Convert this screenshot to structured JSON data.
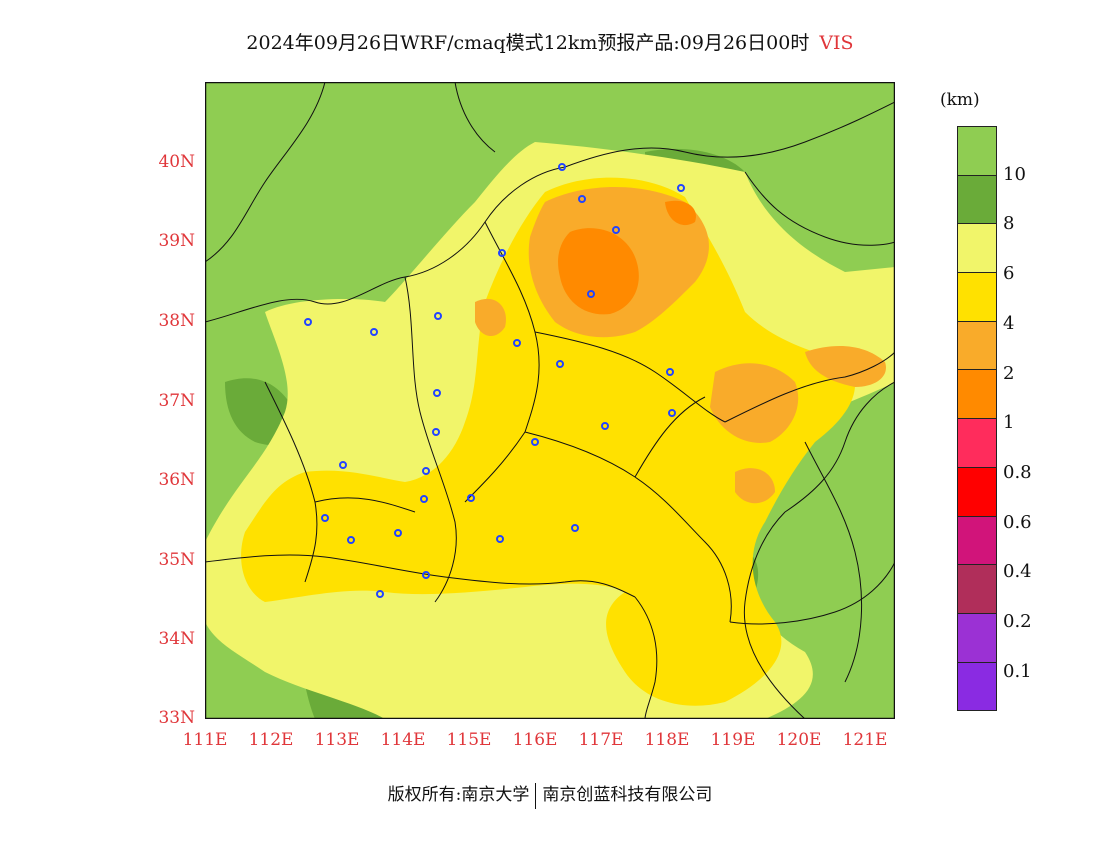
{
  "title": {
    "main": "2024年09月26日WRF/cmaq模式12km预报产品:09月26日00时",
    "variable": "VIS"
  },
  "axes": {
    "lat_labels": [
      "40N",
      "39N",
      "38N",
      "37N",
      "36N",
      "35N",
      "34N",
      "33N"
    ],
    "lon_labels": [
      "111E",
      "112E",
      "113E",
      "114E",
      "115E",
      "116E",
      "117E",
      "118E",
      "119E",
      "120E",
      "121E"
    ]
  },
  "colorbar": {
    "unit": "(km)",
    "levels": [
      {
        "label": "10",
        "color": "#8fcd52"
      },
      {
        "label": "8",
        "color": "#6aab39"
      },
      {
        "label": "6",
        "color": "#f1f56a"
      },
      {
        "label": "4",
        "color": "#ffe100"
      },
      {
        "label": "2",
        "color": "#f9ab2a"
      },
      {
        "label": "1",
        "color": "#ff8a00"
      },
      {
        "label": "0.8",
        "color": "#ff2c5c"
      },
      {
        "label": "0.6",
        "color": "#ff0000"
      },
      {
        "label": "0.4",
        "color": "#d1147a"
      },
      {
        "label": "0.2",
        "color": "#b02e5a"
      },
      {
        "label": "0.1",
        "color": "#9b31d4"
      },
      {
        "label": "",
        "color": "#8a2be2"
      }
    ]
  },
  "footer": {
    "copyright": "版权所有:南京大学",
    "company": "南京创蓝科技有限公司"
  }
}
